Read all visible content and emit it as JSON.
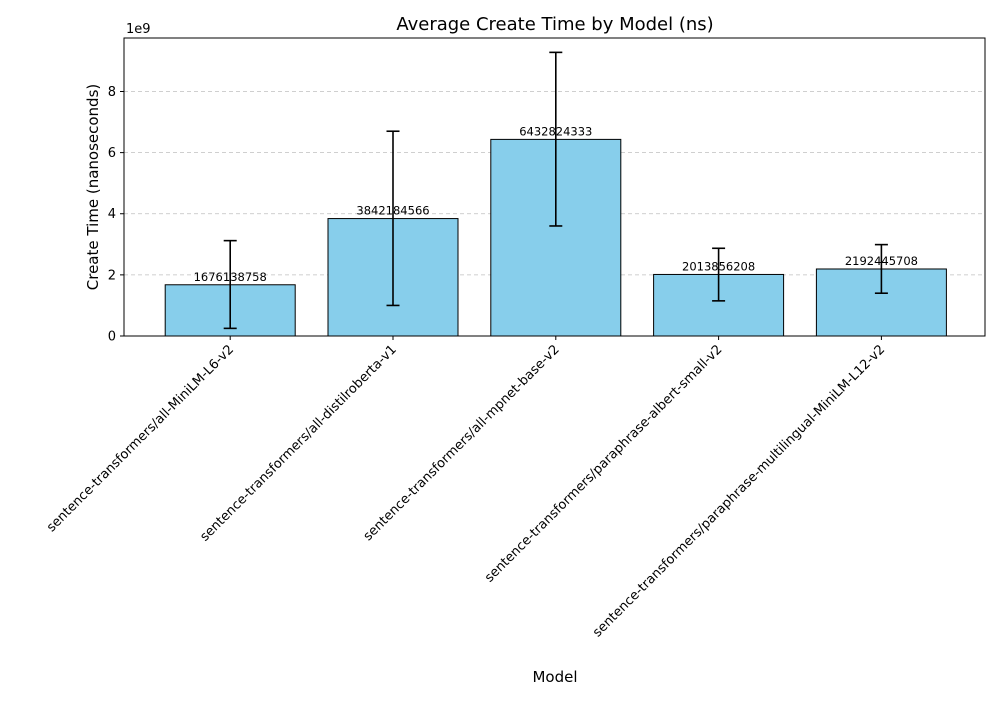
{
  "chart_data": {
    "type": "bar",
    "title": "Average Create Time by Model (ns)",
    "xlabel": "Model",
    "ylabel": "Create Time (nanoseconds)",
    "y_offset_label": "1e9",
    "y_tick_values": [
      0,
      2,
      4,
      6,
      8
    ],
    "y_tick_labels": [
      "0",
      "2",
      "4",
      "6",
      "8"
    ],
    "ylim": [
      0,
      9.75
    ],
    "y_unit_scale": 1000000000,
    "grid": "y-dashed",
    "legend": "none",
    "bar_color": "#87CEEB",
    "bar_edge_color": "#000000",
    "categories": [
      "sentence-transformers/all-MiniLM-L6-v2",
      "sentence-transformers/all-distilroberta-v1",
      "sentence-transformers/all-mpnet-base-v2",
      "sentence-transformers/paraphrase-albert-small-v2",
      "sentence-transformers/paraphrase-multilingual-MiniLM-L12-v2"
    ],
    "values": [
      1676138758,
      3842184566,
      6432824333,
      2013856208,
      2192445708
    ],
    "value_labels": [
      "1676138758",
      "3842184566",
      "6432824333",
      "2013856208",
      "2192445708"
    ],
    "error_low": [
      250000000,
      1000000000,
      3600000000,
      1150000000,
      1400000000
    ],
    "error_high": [
      3120000000,
      6700000000,
      9280000000,
      2870000000,
      2990000000
    ]
  }
}
